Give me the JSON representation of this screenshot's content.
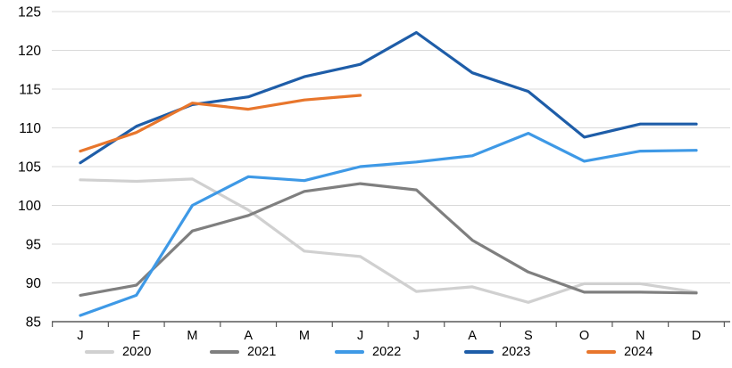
{
  "chart_data": {
    "type": "line",
    "categories": [
      "J",
      "F",
      "M",
      "A",
      "M",
      "J",
      "J",
      "A",
      "S",
      "O",
      "N",
      "D"
    ],
    "y_ticks": [
      85,
      90,
      95,
      100,
      105,
      110,
      115,
      120,
      125
    ],
    "ylim": [
      85,
      125
    ],
    "grid": true,
    "legend_position": "bottom",
    "series": [
      {
        "name": "2020",
        "color": "#D0D0D0",
        "values": [
          103.3,
          103.1,
          103.4,
          99.4,
          94.1,
          93.4,
          88.9,
          89.5,
          87.5,
          89.9,
          89.9,
          88.8
        ]
      },
      {
        "name": "2021",
        "color": "#7F7F7F",
        "values": [
          88.4,
          89.7,
          96.7,
          98.7,
          101.8,
          102.8,
          102.0,
          95.5,
          91.4,
          88.8,
          88.8,
          88.7
        ]
      },
      {
        "name": "2022",
        "color": "#3E99E6",
        "values": [
          85.8,
          88.4,
          100.0,
          103.7,
          103.2,
          105.0,
          105.6,
          106.4,
          109.3,
          105.7,
          107.0,
          107.1
        ]
      },
      {
        "name": "2023",
        "color": "#1E5DA8",
        "values": [
          105.5,
          110.2,
          113.0,
          114.0,
          116.6,
          118.2,
          122.3,
          117.1,
          114.7,
          108.8,
          110.5,
          110.5
        ]
      },
      {
        "name": "2024",
        "color": "#E8762C",
        "values": [
          107.0,
          109.4,
          113.2,
          112.4,
          113.6,
          114.2,
          null,
          null,
          null,
          null,
          null,
          null
        ]
      }
    ],
    "colors": {
      "gridline": "#D9D9D9",
      "axis": "#595959",
      "text": "#000000",
      "background": "#FFFFFF"
    }
  }
}
